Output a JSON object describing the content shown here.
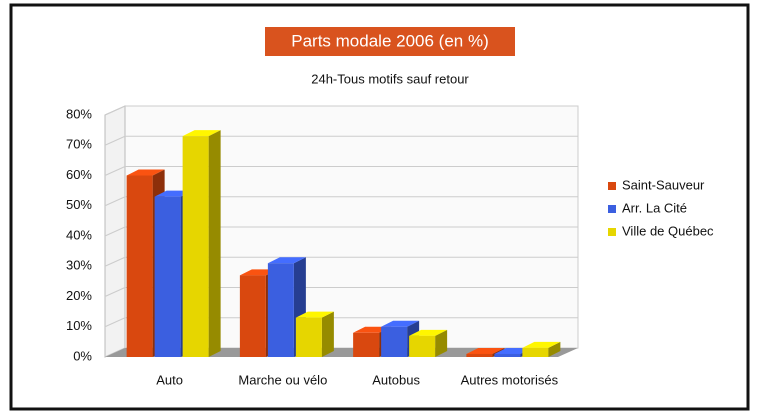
{
  "chart_data": {
    "type": "bar3d",
    "title": "Parts modale 2006 (en %)",
    "subtitle": "24h-Tous motifs sauf retour",
    "categories": [
      "Auto",
      "Marche ou vélo",
      "Autobus",
      "Autres motorisés"
    ],
    "series": [
      {
        "name": "Saint-Sauveur",
        "color": "#d9480f",
        "values": [
          60,
          27,
          8,
          1
        ]
      },
      {
        "name": "Arr. La Cité",
        "color": "#3b5fe0",
        "values": [
          53,
          31,
          10,
          1
        ]
      },
      {
        "name": "Ville de Québec",
        "color": "#e6d600",
        "values": [
          73,
          13,
          7,
          3
        ]
      }
    ],
    "ylim": [
      0,
      80
    ],
    "yticks": [
      {
        "value": 0,
        "label": "0%"
      },
      {
        "value": 10,
        "label": "10%"
      },
      {
        "value": 20,
        "label": "20%"
      },
      {
        "value": 30,
        "label": "30%"
      },
      {
        "value": 40,
        "label": "40%"
      },
      {
        "value": 50,
        "label": "50%"
      },
      {
        "value": 60,
        "label": "60%"
      },
      {
        "value": 70,
        "label": "70%"
      },
      {
        "value": 80,
        "label": "80%"
      }
    ],
    "grid": true,
    "legend": "right"
  }
}
